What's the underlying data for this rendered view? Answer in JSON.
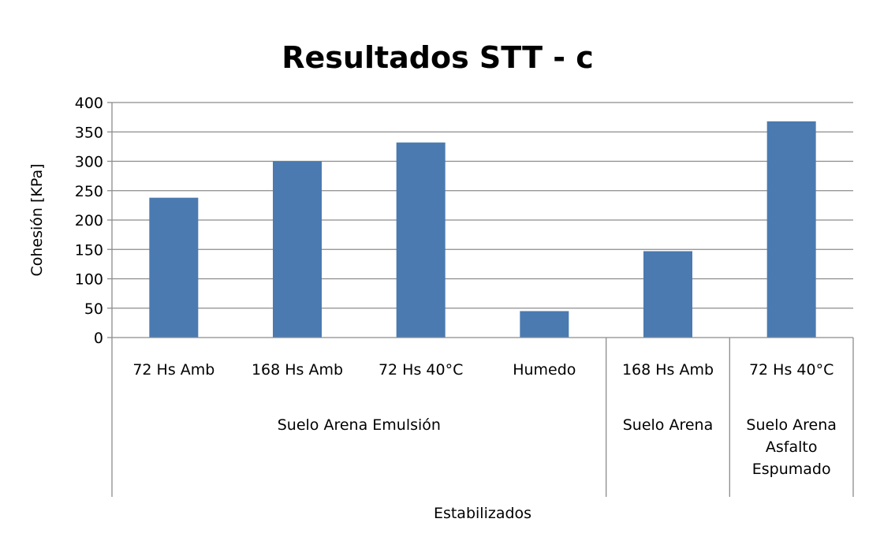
{
  "chart_data": {
    "type": "bar",
    "title": "Resultados STT - c",
    "ylabel": "Cohesión [KPa]",
    "xlabel": "Estabilizados",
    "ylim": [
      0,
      400
    ],
    "yticks": [
      0,
      50,
      100,
      150,
      200,
      250,
      300,
      350,
      400
    ],
    "grid": true,
    "legend": "none",
    "bar_color": "#4a7ab0",
    "categories": [
      "72 Hs Amb",
      "168 Hs Amb",
      "72 Hs 40°C",
      "Humedo",
      "168 Hs Amb",
      "72 Hs 40°C"
    ],
    "values": [
      238,
      300,
      332,
      45,
      147,
      368
    ],
    "groups": [
      {
        "label_lines": [
          "Suelo Arena Emulsión"
        ],
        "start": 0,
        "end": 3
      },
      {
        "label_lines": [
          "Suelo Arena"
        ],
        "start": 4,
        "end": 4
      },
      {
        "label_lines": [
          "Suelo Arena",
          "Asfalto",
          "Espumado"
        ],
        "start": 5,
        "end": 5
      }
    ]
  }
}
